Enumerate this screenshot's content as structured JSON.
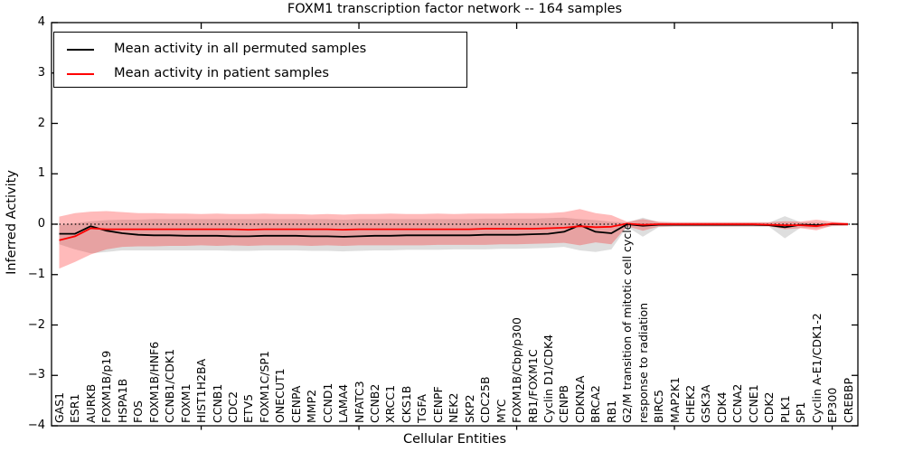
{
  "chart_data": {
    "type": "line",
    "title": "FOXM1 transcription factor network -- 164 samples",
    "xlabel": "Cellular Entities",
    "ylabel": "Inferred Activity",
    "ylim": [
      -4,
      4
    ],
    "yticks": [
      4,
      3,
      2,
      1,
      0,
      -1,
      -2,
      -3,
      -4
    ],
    "ytick_labels": [
      "4",
      "3",
      "2",
      "1",
      "0",
      "−1",
      "−2",
      "−3",
      "−4"
    ],
    "grid": false,
    "legend_position": "upper left",
    "zero_line": {
      "y": 0,
      "style": "dotted",
      "color": "#000000"
    },
    "x_major_tick_indices": [
      9,
      19,
      29,
      39,
      49
    ],
    "categories": [
      "GAS1",
      "ESR1",
      "AURKB",
      "FOXM1B/p19",
      "HSPA1B",
      "FOS",
      "FOXM1B/HNF6",
      "CCNB1/CDK1",
      "FOXM1",
      "HIST1H2BA",
      "CCNB1",
      "CDC2",
      "ETV5",
      "FOXM1C/SP1",
      "ONECUT1",
      "CENPA",
      "MMP2",
      "CCND1",
      "LAMA4",
      "NFATC3",
      "CCNB2",
      "XRCC1",
      "CKS1B",
      "TGFA",
      "CENPF",
      "NEK2",
      "SKP2",
      "CDC25B",
      "MYC",
      "FOXM1B/Cbp/p300",
      "RB1/FOXM1C",
      "Cyclin D1/CDK4",
      "CENPB",
      "CDKN2A",
      "BRCA2",
      "RB1",
      "G2/M transition of mitotic cell cycle",
      "response to radiation",
      "BIRC5",
      "MAP2K1",
      "CHEK2",
      "GSK3A",
      "CDK4",
      "CCNA2",
      "CCNE1",
      "CDK2",
      "PLK1",
      "SP1",
      "Cyclin A-E1/CDK1-2",
      "EP300",
      "CREBBP"
    ],
    "series": [
      {
        "name": "Mean activity in all permuted samples",
        "color": "#000000",
        "band_color": "rgba(0,0,0,0.13)",
        "values": [
          -0.19,
          -0.19,
          -0.04,
          -0.13,
          -0.18,
          -0.21,
          -0.22,
          -0.22,
          -0.23,
          -0.23,
          -0.23,
          -0.24,
          -0.24,
          -0.23,
          -0.23,
          -0.23,
          -0.24,
          -0.24,
          -0.25,
          -0.24,
          -0.23,
          -0.23,
          -0.22,
          -0.22,
          -0.22,
          -0.22,
          -0.22,
          -0.21,
          -0.21,
          -0.21,
          -0.2,
          -0.19,
          -0.15,
          -0.02,
          -0.15,
          -0.18,
          0.0,
          -0.03,
          -0.01,
          -0.01,
          -0.01,
          -0.01,
          -0.01,
          -0.01,
          -0.01,
          -0.02,
          -0.06,
          -0.01,
          -0.02,
          0.0,
          0.0
        ],
        "band_upper": [
          -0.02,
          0.02,
          0.06,
          0.08,
          0.09,
          0.09,
          0.1,
          0.1,
          0.1,
          0.1,
          0.1,
          0.1,
          0.1,
          0.1,
          0.1,
          0.1,
          0.1,
          0.1,
          0.09,
          0.1,
          0.1,
          0.1,
          0.1,
          0.1,
          0.1,
          0.1,
          0.1,
          0.11,
          0.11,
          0.11,
          0.11,
          0.12,
          0.13,
          0.1,
          0.08,
          0.05,
          0.03,
          0.13,
          0.04,
          0.03,
          0.03,
          0.03,
          0.03,
          0.03,
          0.03,
          0.03,
          0.16,
          0.04,
          0.03,
          0.02,
          0.02
        ],
        "band_lower": [
          -0.4,
          -0.5,
          -0.58,
          -0.55,
          -0.52,
          -0.52,
          -0.52,
          -0.52,
          -0.52,
          -0.52,
          -0.52,
          -0.53,
          -0.53,
          -0.52,
          -0.52,
          -0.52,
          -0.53,
          -0.53,
          -0.54,
          -0.53,
          -0.52,
          -0.52,
          -0.51,
          -0.51,
          -0.51,
          -0.5,
          -0.5,
          -0.5,
          -0.49,
          -0.49,
          -0.48,
          -0.47,
          -0.45,
          -0.52,
          -0.55,
          -0.5,
          -0.05,
          -0.25,
          -0.06,
          -0.05,
          -0.05,
          -0.05,
          -0.05,
          -0.05,
          -0.05,
          -0.05,
          -0.28,
          -0.07,
          -0.08,
          -0.04,
          -0.03
        ]
      },
      {
        "name": "Mean activity in patient samples",
        "color": "#ff0000",
        "band_color": "rgba(255,0,0,0.27)",
        "values": [
          -0.32,
          -0.24,
          -0.08,
          -0.1,
          -0.1,
          -0.1,
          -0.1,
          -0.1,
          -0.1,
          -0.1,
          -0.1,
          -0.1,
          -0.11,
          -0.1,
          -0.1,
          -0.1,
          -0.1,
          -0.1,
          -0.11,
          -0.1,
          -0.1,
          -0.1,
          -0.1,
          -0.1,
          -0.1,
          -0.1,
          -0.1,
          -0.09,
          -0.09,
          -0.09,
          -0.09,
          -0.08,
          -0.07,
          -0.04,
          -0.06,
          -0.05,
          0.01,
          -0.01,
          0.0,
          0.0,
          0.0,
          0.0,
          0.0,
          0.0,
          0.0,
          -0.01,
          -0.02,
          -0.02,
          -0.04,
          0.01,
          0.0
        ],
        "band_upper": [
          0.15,
          0.22,
          0.25,
          0.26,
          0.24,
          0.22,
          0.22,
          0.21,
          0.21,
          0.2,
          0.21,
          0.2,
          0.2,
          0.21,
          0.2,
          0.2,
          0.19,
          0.2,
          0.19,
          0.2,
          0.2,
          0.21,
          0.2,
          0.2,
          0.21,
          0.2,
          0.21,
          0.21,
          0.21,
          0.22,
          0.22,
          0.22,
          0.24,
          0.3,
          0.22,
          0.18,
          0.05,
          0.1,
          0.05,
          0.04,
          0.04,
          0.04,
          0.04,
          0.04,
          0.04,
          0.04,
          0.06,
          0.05,
          0.09,
          0.05,
          0.03
        ],
        "band_lower": [
          -0.88,
          -0.75,
          -0.6,
          -0.5,
          -0.45,
          -0.44,
          -0.44,
          -0.43,
          -0.43,
          -0.42,
          -0.43,
          -0.42,
          -0.43,
          -0.42,
          -0.42,
          -0.42,
          -0.43,
          -0.42,
          -0.43,
          -0.42,
          -0.42,
          -0.42,
          -0.42,
          -0.42,
          -0.41,
          -0.41,
          -0.41,
          -0.41,
          -0.4,
          -0.4,
          -0.39,
          -0.38,
          -0.37,
          -0.42,
          -0.36,
          -0.4,
          -0.04,
          -0.13,
          -0.05,
          -0.04,
          -0.04,
          -0.04,
          -0.04,
          -0.04,
          -0.04,
          -0.04,
          -0.1,
          -0.08,
          -0.12,
          -0.03,
          -0.03
        ]
      }
    ]
  },
  "legend": {
    "entries": [
      {
        "label": "Mean activity in all permuted samples",
        "color": "#000000"
      },
      {
        "label": "Mean activity in patient samples",
        "color": "#ff0000"
      }
    ]
  }
}
